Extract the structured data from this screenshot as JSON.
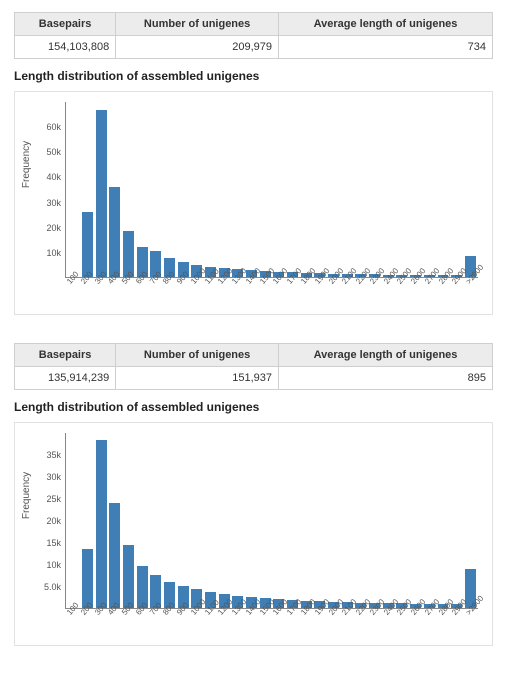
{
  "global": {
    "background_color": "#ffffff",
    "border_color": "#e2e2e2",
    "table_border_color": "#cfcfcf",
    "table_header_bg": "#ececec",
    "axis_color": "#888888",
    "text_color": "#333333",
    "tick_color": "#555555",
    "title_fontsize": 12,
    "th_fontsize": 11,
    "tick_fontsize": 9,
    "xtick_rotation_deg": -50
  },
  "panels": [
    {
      "summary": {
        "headers": [
          "Basepairs",
          "Number of unigenes",
          "Average length of unigenes"
        ],
        "values": [
          "154,103,808",
          "209,979",
          "734"
        ]
      },
      "chart": {
        "type": "bar",
        "title": "Length distribution of assembled unigenes",
        "ylabel": "Frequency",
        "bar_color": "#3f7fb5",
        "bar_width": 0.8,
        "ylim": [
          0,
          70000
        ],
        "yticks": [
          10000,
          20000,
          30000,
          40000,
          50000,
          60000
        ],
        "ytick_labels": [
          "10k",
          "20k",
          "30k",
          "40k",
          "50k",
          "60k"
        ],
        "categories": [
          "100",
          "200",
          "300",
          "400",
          "500",
          "600",
          "700",
          "800",
          "900",
          "1000",
          "1100",
          "1200",
          "1300",
          "1400",
          "1500",
          "1600",
          "1700",
          "1800",
          "1900",
          "2000",
          "2100",
          "2200",
          "2300",
          "2400",
          "2500",
          "2600",
          "2700",
          "2800",
          "2900",
          ">2900"
        ],
        "values": [
          0,
          26000,
          67000,
          36000,
          18500,
          12000,
          10500,
          7500,
          6000,
          5000,
          4200,
          3600,
          3100,
          2700,
          2400,
          2100,
          1900,
          1700,
          1500,
          1400,
          1300,
          1200,
          1100,
          1000,
          950,
          900,
          850,
          800,
          780,
          8500
        ]
      }
    },
    {
      "summary": {
        "headers": [
          "Basepairs",
          "Number of unigenes",
          "Average length of unigenes"
        ],
        "values": [
          "135,914,239",
          "151,937",
          "895"
        ]
      },
      "chart": {
        "type": "bar",
        "title": "Length distribution of assembled unigenes",
        "ylabel": "Frequency",
        "bar_color": "#3f7fb5",
        "bar_width": 0.8,
        "ylim": [
          0,
          40000
        ],
        "yticks": [
          5000,
          10000,
          15000,
          20000,
          25000,
          30000,
          35000
        ],
        "ytick_labels": [
          "5.0k",
          "10k",
          "15k",
          "20k",
          "25k",
          "30k",
          "35k"
        ],
        "categories": [
          "100",
          "200",
          "300",
          "400",
          "500",
          "600",
          "700",
          "800",
          "900",
          "1000",
          "1100",
          "1200",
          "1300",
          "1400",
          "1500",
          "1600",
          "1700",
          "1800",
          "1900",
          "2000",
          "2100",
          "2200",
          "2300",
          "2400",
          "2500",
          "2600",
          "2700",
          "2800",
          "2900",
          ">2900"
        ],
        "values": [
          0,
          13500,
          38500,
          24000,
          14500,
          9500,
          7500,
          6000,
          5000,
          4300,
          3700,
          3200,
          2800,
          2500,
          2200,
          2000,
          1800,
          1650,
          1500,
          1400,
          1300,
          1200,
          1150,
          1100,
          1050,
          1000,
          950,
          900,
          880,
          9000
        ]
      }
    }
  ]
}
